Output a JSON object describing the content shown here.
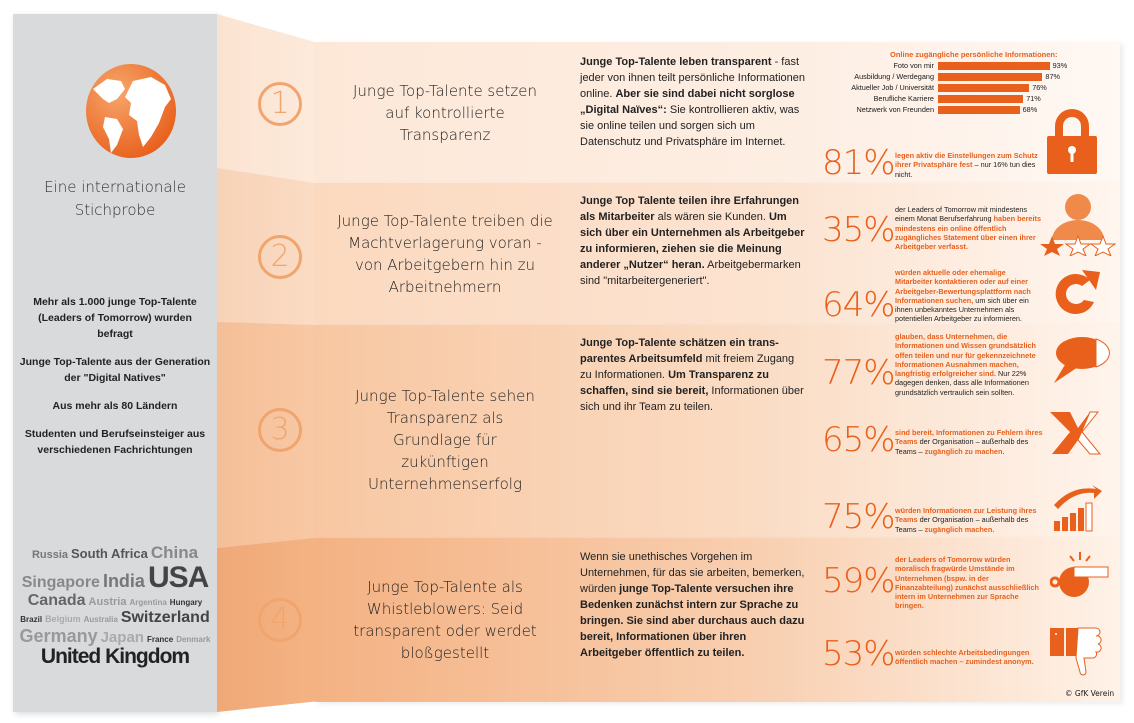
{
  "sidebar": {
    "title": "Eine internationale Stichprobe",
    "facts": [
      "Mehr als 1.000 junge Top-Talente (Leaders of Tomorrow) wurden befragt",
      "Junge Top-Talente aus der Generation der \"Digital Natives\"",
      "Aus mehr als 80 Ländern",
      "Studenten und Berufseinsteiger aus verschiedenen Fachrichtungen"
    ],
    "word_cloud": [
      "Russia",
      "South Africa",
      "China",
      "Singapore",
      "India",
      "USA",
      "Canada",
      "Austria",
      "Argentina",
      "Hungary",
      "Brazil",
      "Belgium",
      "Australia",
      "Switzerland",
      "Germany",
      "Japan",
      "France",
      "Denmark",
      "United Kingdom"
    ]
  },
  "sections": [
    {
      "number": "1",
      "title": "Junge Top-Talente setzen auf kontrollierte Transparenz",
      "body": [
        [
          "Junge Top-Talente leben transparent",
          "b"
        ],
        [
          " - fast jeder von ihnen teilt persönliche Informationen online. ",
          "n"
        ],
        [
          "Aber sie sind dabei nicht sorglose „Digital Naïves“:",
          "b"
        ],
        [
          " Sie kontrollieren aktiv, was sie online teilen und sorgen sich um Datenschutz und Privatsphäre im Internet.",
          "n"
        ]
      ]
    },
    {
      "number": "2",
      "title": "Junge Top-Talente treiben die Machtverlagerung voran - von Arbeitgebern hin zu Arbeitnehmern",
      "body": [
        [
          "Junge Top Talente teilen ihre Erfahrungen als Mitarbeiter",
          "b"
        ],
        [
          " als wären sie Kunden. ",
          "n"
        ],
        [
          "Um sich über ein Unternehmen als Arbeitgeber zu informieren, ziehen sie die Meinung anderer „Nutzer“ heran.",
          "b"
        ],
        [
          " Arbeitgebermarken sind \"mitarbeitergeneriert\".",
          "n"
        ]
      ]
    },
    {
      "number": "3",
      "title": "Junge Top-Talente sehen Transparenz als Grundlage für zukünftigen Unternehmenserfolg",
      "body": [
        [
          "Junge Top-Talente schätzen ein trans-parentes Arbeitsumfeld",
          "b"
        ],
        [
          " mit freiem Zugang zu Informationen. ",
          "n"
        ],
        [
          "Um Transparenz zu schaffen, sind sie bereit,",
          "b"
        ],
        [
          " Informationen über sich und ihr Team zu teilen.",
          "n"
        ]
      ]
    },
    {
      "number": "4",
      "title": "Junge Top-Talente als Whistleblowers: Seid transparent oder werdet bloßgestellt",
      "body": [
        [
          "Wenn sie unethisches Vorgehen im Unternehmen, für das sie arbeiten, bemerken, würden ",
          "n"
        ],
        [
          "junge Top-Talente versuchen ihre Bedenken zunächst intern zur Sprache zu bringen. Sie sind aber durchaus auch dazu bereit, Informationen über ihren Arbeitgeber öffentlich zu teilen.",
          "b"
        ]
      ]
    }
  ],
  "chart_data": {
    "type": "bar",
    "title": "Online zugängliche persönliche Informationen:",
    "categories": [
      "Foto von mir",
      "Ausbildung / Werdegang",
      "Aktueller Job / Universität",
      "Berufliche Karriere",
      "Netzwerk von Freunden"
    ],
    "values": [
      93,
      87,
      76,
      71,
      68
    ],
    "value_labels": [
      "93%",
      "87%",
      "76%",
      "71%",
      "68%"
    ],
    "xlim": [
      0,
      100
    ]
  },
  "stats": [
    {
      "pct": "81%",
      "text": [
        [
          "legen aktiv die Einstellungen zum Schutz ihrer Privatsphäre fest",
          "o"
        ],
        [
          " – nur 16% tun dies nicht.",
          "n"
        ]
      ]
    },
    {
      "pct": "35%",
      "text": [
        [
          "der Leaders of Tomorrow mit mindestens einem Monat Berufserfahrung ",
          "n"
        ],
        [
          "haben bereits mindestens ein online öffentlich zugängliches Statement über einen ihrer Arbeitgeber verfasst.",
          "o"
        ]
      ]
    },
    {
      "pct": "64%",
      "text": [
        [
          "würden aktuelle oder ehemalige Mitarbeiter kontaktieren oder auf einer Arbeitgeber-Bewertungsplattform nach Informationen suchen,",
          "o"
        ],
        [
          " um sich über ein ihnen unbekanntes Unternehmen als potentiellen Arbeitgeber zu informieren.",
          "n"
        ]
      ]
    },
    {
      "pct": "77%",
      "text": [
        [
          "glauben, dass Unternehmen, die Informationen und Wissen grundsätzlich offen teilen und nur für gekennzeichnete Informationen Ausnahmen machen, langfristig erfolgreicher sind.",
          "o"
        ],
        [
          " Nur 22% dagegen denken, dass alle Informationen grundsätzlich vertraulich sein sollten.",
          "n"
        ]
      ]
    },
    {
      "pct": "65%",
      "text": [
        [
          "sind bereit, Informationen zu Fehlern ihres Teams",
          "o"
        ],
        [
          " der Organisation – außerhalb des Teams – ",
          "n"
        ],
        [
          "zugänglich zu machen.",
          "o"
        ]
      ]
    },
    {
      "pct": "75%",
      "text": [
        [
          "würden Informationen zur Leistung ihres Teams",
          "o"
        ],
        [
          " der Organisation – außerhalb des Teams – ",
          "n"
        ],
        [
          "zugänglich machen.",
          "o"
        ]
      ]
    },
    {
      "pct": "59%",
      "text": [
        [
          "der Leaders of Tomorrow würden moralisch fragwürde Umstände im Unternehmen (bspw. in der Finanzabteilung) zunächst ausschließlich intern im Unternehmen zur Sprache bringen.",
          "o"
        ]
      ]
    },
    {
      "pct": "53%",
      "text": [
        [
          "würden schlechte Arbeitsbedingungen öffentlich machen – zumindest anonym.",
          "o"
        ]
      ]
    }
  ],
  "copyright": "© GfK Verein",
  "colors": {
    "accent": "#e8601c",
    "sidebar": "#d9dadc"
  }
}
